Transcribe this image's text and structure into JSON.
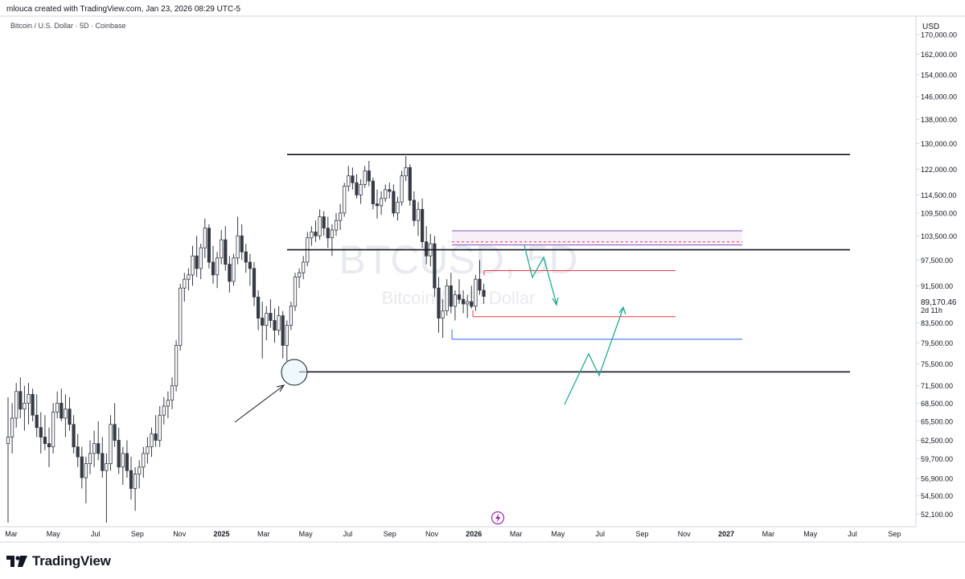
{
  "header": {
    "attribution": "mlouca created with TradingView.com, Jan 23, 2026 08:29 UTC-5",
    "symbol_title": "Bitcoin / U.S. Dollar · 5D · Coinbase"
  },
  "watermark": {
    "symbol": "BTCUSD, 5D",
    "name": "Bitcoin / U.S. Dollar"
  },
  "footer": {
    "brand": "TradingView"
  },
  "colors": {
    "up_candle": "#ffffff",
    "down_candle": "#363a45",
    "wick": "#363a45",
    "level_line": "#131722",
    "red_zone": "#f23645",
    "blue_zone": "#2962ff",
    "purple_zone": "#7e57c2",
    "projection": "#22ab94",
    "grid": "#f0f3fa"
  },
  "chart_data": {
    "type": "candlestick",
    "title": "Bitcoin / U.S. Dollar · 5D · Coinbase",
    "currency": "USD",
    "scale": "log",
    "ylim": [
      50500,
      178000
    ],
    "y_ticks": [
      "170,000.00",
      "162,000.00",
      "154,000.00",
      "146,000.00",
      "138,000.00",
      "130,000.00",
      "122,000.00",
      "114,500.00",
      "109,500.00",
      "103,500.00",
      "97,500.00",
      "91,500.00",
      "83,500.00",
      "79,500.00",
      "75,500.00",
      "71,500.00",
      "68,500.00",
      "65,500.00",
      "62,500.00",
      "59,700.00",
      "56,900.00",
      "54,500.00",
      "52,100.00"
    ],
    "x_ticks": [
      "Mar",
      "May",
      "Jul",
      "Sep",
      "Nov",
      "2025",
      "Mar",
      "May",
      "Jul",
      "Sep",
      "Nov",
      "2026",
      "Mar",
      "May",
      "Jul",
      "Sep",
      "Nov",
      "2027",
      "Mar",
      "May",
      "Jul",
      "Sep"
    ],
    "last_price": "89,170.46",
    "countdown": "2d 11h",
    "candles": [
      {
        "o": 62000,
        "h": 69500,
        "l": 51000,
        "c": 63000
      },
      {
        "o": 63000,
        "h": 68500,
        "l": 60500,
        "c": 66000
      },
      {
        "o": 66000,
        "h": 72000,
        "l": 64500,
        "c": 70500
      },
      {
        "o": 70500,
        "h": 73000,
        "l": 66000,
        "c": 67500
      },
      {
        "o": 67500,
        "h": 71500,
        "l": 64000,
        "c": 68500
      },
      {
        "o": 68500,
        "h": 72000,
        "l": 65000,
        "c": 70000
      },
      {
        "o": 70000,
        "h": 71000,
        "l": 65500,
        "c": 66500
      },
      {
        "o": 66500,
        "h": 70000,
        "l": 63000,
        "c": 64500
      },
      {
        "o": 64500,
        "h": 67000,
        "l": 60500,
        "c": 63000
      },
      {
        "o": 63000,
        "h": 66500,
        "l": 61000,
        "c": 62000
      },
      {
        "o": 62000,
        "h": 64500,
        "l": 58500,
        "c": 61500
      },
      {
        "o": 61500,
        "h": 68500,
        "l": 60500,
        "c": 67000
      },
      {
        "o": 67000,
        "h": 70500,
        "l": 66000,
        "c": 68500
      },
      {
        "o": 68500,
        "h": 71000,
        "l": 65500,
        "c": 66000
      },
      {
        "o": 66000,
        "h": 70000,
        "l": 63000,
        "c": 67500
      },
      {
        "o": 67500,
        "h": 69500,
        "l": 64000,
        "c": 65000
      },
      {
        "o": 65000,
        "h": 66500,
        "l": 60500,
        "c": 61500
      },
      {
        "o": 61500,
        "h": 63500,
        "l": 58500,
        "c": 60000
      },
      {
        "o": 60000,
        "h": 61500,
        "l": 55500,
        "c": 57000
      },
      {
        "o": 57000,
        "h": 60000,
        "l": 53500,
        "c": 59000
      },
      {
        "o": 59000,
        "h": 62500,
        "l": 57500,
        "c": 60500
      },
      {
        "o": 60500,
        "h": 64000,
        "l": 58500,
        "c": 62000
      },
      {
        "o": 62000,
        "h": 65500,
        "l": 59500,
        "c": 60500
      },
      {
        "o": 60500,
        "h": 63000,
        "l": 57000,
        "c": 58000
      },
      {
        "o": 58000,
        "h": 60500,
        "l": 51000,
        "c": 59000
      },
      {
        "o": 59000,
        "h": 66500,
        "l": 58000,
        "c": 65000
      },
      {
        "o": 65000,
        "h": 68500,
        "l": 61500,
        "c": 62500
      },
      {
        "o": 62500,
        "h": 64500,
        "l": 57500,
        "c": 58500
      },
      {
        "o": 58500,
        "h": 61500,
        "l": 56000,
        "c": 60500
      },
      {
        "o": 60500,
        "h": 62500,
        "l": 57000,
        "c": 58000
      },
      {
        "o": 58000,
        "h": 60000,
        "l": 54000,
        "c": 55500
      },
      {
        "o": 55500,
        "h": 58500,
        "l": 52500,
        "c": 57500
      },
      {
        "o": 57500,
        "h": 59500,
        "l": 55500,
        "c": 58500
      },
      {
        "o": 58500,
        "h": 61500,
        "l": 57000,
        "c": 60500
      },
      {
        "o": 60500,
        "h": 63000,
        "l": 59000,
        "c": 61500
      },
      {
        "o": 61500,
        "h": 64500,
        "l": 60000,
        "c": 63500
      },
      {
        "o": 63500,
        "h": 66500,
        "l": 61500,
        "c": 62500
      },
      {
        "o": 62500,
        "h": 68000,
        "l": 61500,
        "c": 66500
      },
      {
        "o": 66500,
        "h": 69500,
        "l": 65000,
        "c": 68000
      },
      {
        "o": 68000,
        "h": 70500,
        "l": 66000,
        "c": 69000
      },
      {
        "o": 69000,
        "h": 73000,
        "l": 67500,
        "c": 71500
      },
      {
        "o": 71500,
        "h": 80000,
        "l": 70500,
        "c": 79000
      },
      {
        "o": 79000,
        "h": 92000,
        "l": 78000,
        "c": 91000
      },
      {
        "o": 91000,
        "h": 94500,
        "l": 88000,
        "c": 93000
      },
      {
        "o": 93000,
        "h": 95500,
        "l": 90500,
        "c": 94000
      },
      {
        "o": 94000,
        "h": 101000,
        "l": 91500,
        "c": 98500
      },
      {
        "o": 98500,
        "h": 103500,
        "l": 93500,
        "c": 95500
      },
      {
        "o": 95500,
        "h": 101500,
        "l": 93000,
        "c": 100500
      },
      {
        "o": 100500,
        "h": 108000,
        "l": 98000,
        "c": 105500
      },
      {
        "o": 105500,
        "h": 106500,
        "l": 95500,
        "c": 97000
      },
      {
        "o": 97000,
        "h": 101000,
        "l": 92000,
        "c": 94000
      },
      {
        "o": 94000,
        "h": 99500,
        "l": 91000,
        "c": 98000
      },
      {
        "o": 98000,
        "h": 105000,
        "l": 96500,
        "c": 102500
      },
      {
        "o": 102500,
        "h": 106000,
        "l": 95000,
        "c": 96500
      },
      {
        "o": 96500,
        "h": 98500,
        "l": 90000,
        "c": 92500
      },
      {
        "o": 92500,
        "h": 99000,
        "l": 91500,
        "c": 98000
      },
      {
        "o": 98000,
        "h": 108500,
        "l": 96500,
        "c": 103500
      },
      {
        "o": 103500,
        "h": 106500,
        "l": 97500,
        "c": 99500
      },
      {
        "o": 99500,
        "h": 101500,
        "l": 94500,
        "c": 97000
      },
      {
        "o": 97000,
        "h": 99000,
        "l": 91500,
        "c": 95500
      },
      {
        "o": 95500,
        "h": 97000,
        "l": 87000,
        "c": 89000
      },
      {
        "o": 89000,
        "h": 90500,
        "l": 82000,
        "c": 84500
      },
      {
        "o": 84500,
        "h": 88000,
        "l": 76500,
        "c": 83000
      },
      {
        "o": 83000,
        "h": 87000,
        "l": 80000,
        "c": 85500
      },
      {
        "o": 85500,
        "h": 88500,
        "l": 82500,
        "c": 84000
      },
      {
        "o": 84000,
        "h": 86500,
        "l": 79500,
        "c": 82000
      },
      {
        "o": 82000,
        "h": 87000,
        "l": 81000,
        "c": 85000
      },
      {
        "o": 85000,
        "h": 86000,
        "l": 76500,
        "c": 79000
      },
      {
        "o": 79000,
        "h": 84000,
        "l": 76000,
        "c": 83000
      },
      {
        "o": 83000,
        "h": 88000,
        "l": 82000,
        "c": 87000
      },
      {
        "o": 87000,
        "h": 94500,
        "l": 86000,
        "c": 93500
      },
      {
        "o": 93500,
        "h": 95500,
        "l": 91000,
        "c": 94500
      },
      {
        "o": 94500,
        "h": 98500,
        "l": 93000,
        "c": 97000
      },
      {
        "o": 97000,
        "h": 104500,
        "l": 96000,
        "c": 103000
      },
      {
        "o": 103000,
        "h": 106000,
        "l": 101000,
        "c": 104500
      },
      {
        "o": 104500,
        "h": 107500,
        "l": 102000,
        "c": 103500
      },
      {
        "o": 103500,
        "h": 110500,
        "l": 102500,
        "c": 108500
      },
      {
        "o": 108500,
        "h": 110000,
        "l": 103500,
        "c": 105500
      },
      {
        "o": 105500,
        "h": 108500,
        "l": 100500,
        "c": 103000
      },
      {
        "o": 103000,
        "h": 106500,
        "l": 98500,
        "c": 105000
      },
      {
        "o": 105000,
        "h": 109500,
        "l": 103500,
        "c": 107500
      },
      {
        "o": 107500,
        "h": 112000,
        "l": 105000,
        "c": 109500
      },
      {
        "o": 109500,
        "h": 118000,
        "l": 108500,
        "c": 117000
      },
      {
        "o": 117000,
        "h": 123000,
        "l": 115500,
        "c": 120000
      },
      {
        "o": 120000,
        "h": 122500,
        "l": 116000,
        "c": 118000
      },
      {
        "o": 118000,
        "h": 120500,
        "l": 113500,
        "c": 114500
      },
      {
        "o": 114500,
        "h": 119000,
        "l": 112000,
        "c": 117500
      },
      {
        "o": 117500,
        "h": 123000,
        "l": 116500,
        "c": 121500
      },
      {
        "o": 121500,
        "h": 124500,
        "l": 117000,
        "c": 118500
      },
      {
        "o": 118500,
        "h": 119500,
        "l": 110500,
        "c": 112000
      },
      {
        "o": 112000,
        "h": 116000,
        "l": 108000,
        "c": 111500
      },
      {
        "o": 111500,
        "h": 115500,
        "l": 109000,
        "c": 113500
      },
      {
        "o": 113500,
        "h": 117500,
        "l": 112500,
        "c": 116000
      },
      {
        "o": 116000,
        "h": 118000,
        "l": 113500,
        "c": 115500
      },
      {
        "o": 115500,
        "h": 117500,
        "l": 108500,
        "c": 109500
      },
      {
        "o": 109500,
        "h": 114000,
        "l": 107500,
        "c": 112500
      },
      {
        "o": 112500,
        "h": 121500,
        "l": 111500,
        "c": 120000
      },
      {
        "o": 120000,
        "h": 126000,
        "l": 118500,
        "c": 122500
      },
      {
        "o": 122500,
        "h": 123500,
        "l": 111500,
        "c": 113000
      },
      {
        "o": 113000,
        "h": 115500,
        "l": 106000,
        "c": 107500
      },
      {
        "o": 107500,
        "h": 112500,
        "l": 103500,
        "c": 110500
      },
      {
        "o": 110500,
        "h": 113500,
        "l": 100500,
        "c": 102000
      },
      {
        "o": 102000,
        "h": 106000,
        "l": 96500,
        "c": 98500
      },
      {
        "o": 98500,
        "h": 104000,
        "l": 96000,
        "c": 101500
      },
      {
        "o": 101500,
        "h": 103500,
        "l": 89000,
        "c": 91000
      },
      {
        "o": 91000,
        "h": 93500,
        "l": 81500,
        "c": 84500
      },
      {
        "o": 84500,
        "h": 88500,
        "l": 80500,
        "c": 86000
      },
      {
        "o": 86000,
        "h": 93000,
        "l": 85000,
        "c": 91500
      },
      {
        "o": 91500,
        "h": 94500,
        "l": 85500,
        "c": 87000
      },
      {
        "o": 87000,
        "h": 90500,
        "l": 84000,
        "c": 89500
      },
      {
        "o": 89500,
        "h": 93000,
        "l": 87500,
        "c": 88500
      },
      {
        "o": 88500,
        "h": 90500,
        "l": 85500,
        "c": 87500
      },
      {
        "o": 87500,
        "h": 89500,
        "l": 84500,
        "c": 88000
      },
      {
        "o": 88000,
        "h": 91500,
        "l": 86500,
        "c": 87000
      },
      {
        "o": 87000,
        "h": 94000,
        "l": 86000,
        "c": 93000
      },
      {
        "o": 93000,
        "h": 97500,
        "l": 89500,
        "c": 90500
      },
      {
        "o": 90500,
        "h": 92000,
        "l": 87500,
        "c": 89170
      }
    ],
    "horizontal_levels": [
      126500,
      100000,
      74000
    ],
    "zones": [
      {
        "color": "purple",
        "top": 104800,
        "bottom": 101200,
        "dashed": 102000
      },
      {
        "color": "red",
        "top": 95000,
        "bottom": 84800
      },
      {
        "color": "blue",
        "top": 80200
      }
    ]
  }
}
